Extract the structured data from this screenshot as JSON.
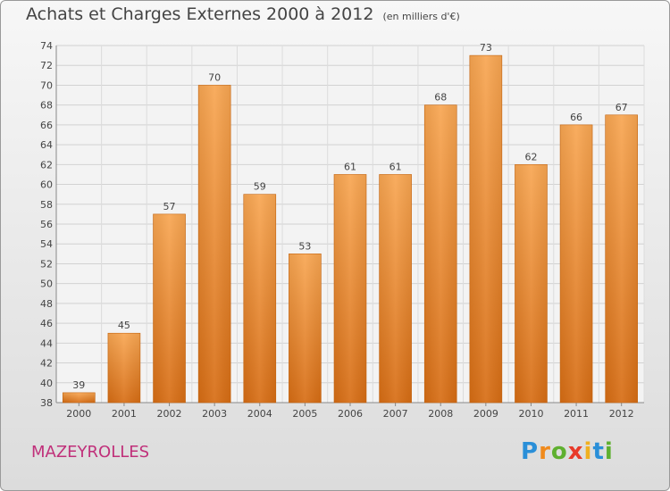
{
  "chart_data": {
    "type": "bar",
    "title": "Achats et Charges Externes 2000 à 2012",
    "subtitle": "(en milliers d'€)",
    "categories": [
      "2000",
      "2001",
      "2002",
      "2003",
      "2004",
      "2005",
      "2006",
      "2007",
      "2008",
      "2009",
      "2010",
      "2011",
      "2012"
    ],
    "values": [
      39,
      45,
      57,
      70,
      59,
      53,
      61,
      61,
      68,
      73,
      62,
      66,
      67
    ],
    "ylim": [
      38,
      74
    ],
    "yticks": [
      38,
      40,
      42,
      44,
      46,
      48,
      50,
      52,
      54,
      56,
      58,
      60,
      62,
      64,
      66,
      68,
      70,
      72,
      74
    ],
    "grid": true,
    "bar_color": "#f0953a",
    "xlabel": "",
    "ylabel": ""
  },
  "commune": "MAZEYROLLES",
  "brand": {
    "letters": [
      "P",
      "r",
      "o",
      "x",
      "i",
      "t",
      "i"
    ],
    "colors": [
      "#2a8fd8",
      "#f08a1c",
      "#5fb030",
      "#e83a2a",
      "#f0b020",
      "#2a8fd8",
      "#5fb030"
    ],
    "logo_text": "Proxiti"
  }
}
